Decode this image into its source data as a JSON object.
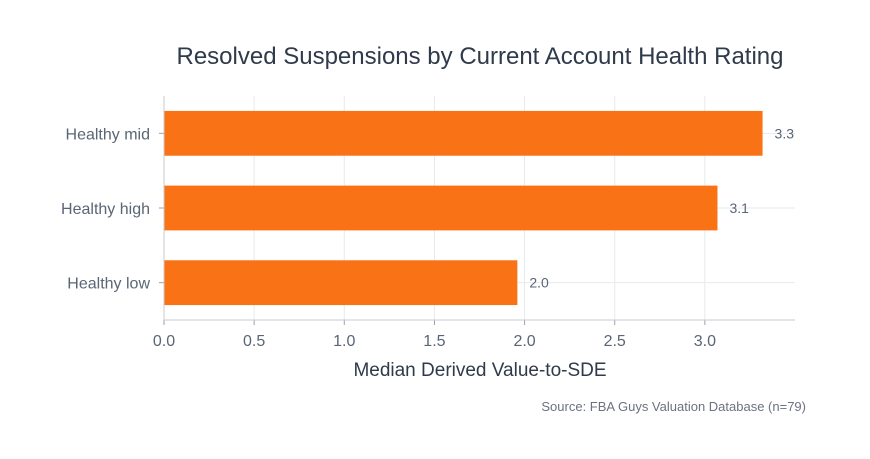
{
  "chart_data": {
    "type": "bar",
    "orientation": "horizontal",
    "title": "Resolved Suspensions by Current Account Health Rating",
    "xlabel": "Median Derived Value-to-SDE",
    "ylabel": "",
    "categories": [
      "Healthy mid",
      "Healthy high",
      "Healthy low"
    ],
    "values": [
      3.32,
      3.07,
      1.96
    ],
    "data_labels": [
      "3.3",
      "3.1",
      "2.0"
    ],
    "xlim": [
      0,
      3.5
    ],
    "xticks": [
      "0.0",
      "0.5",
      "1.0",
      "1.5",
      "2.0",
      "2.5",
      "3.0"
    ],
    "grid": true,
    "bar_color": "#f97316",
    "source": "Source: FBA Guys Valuation Database (n=79)"
  }
}
